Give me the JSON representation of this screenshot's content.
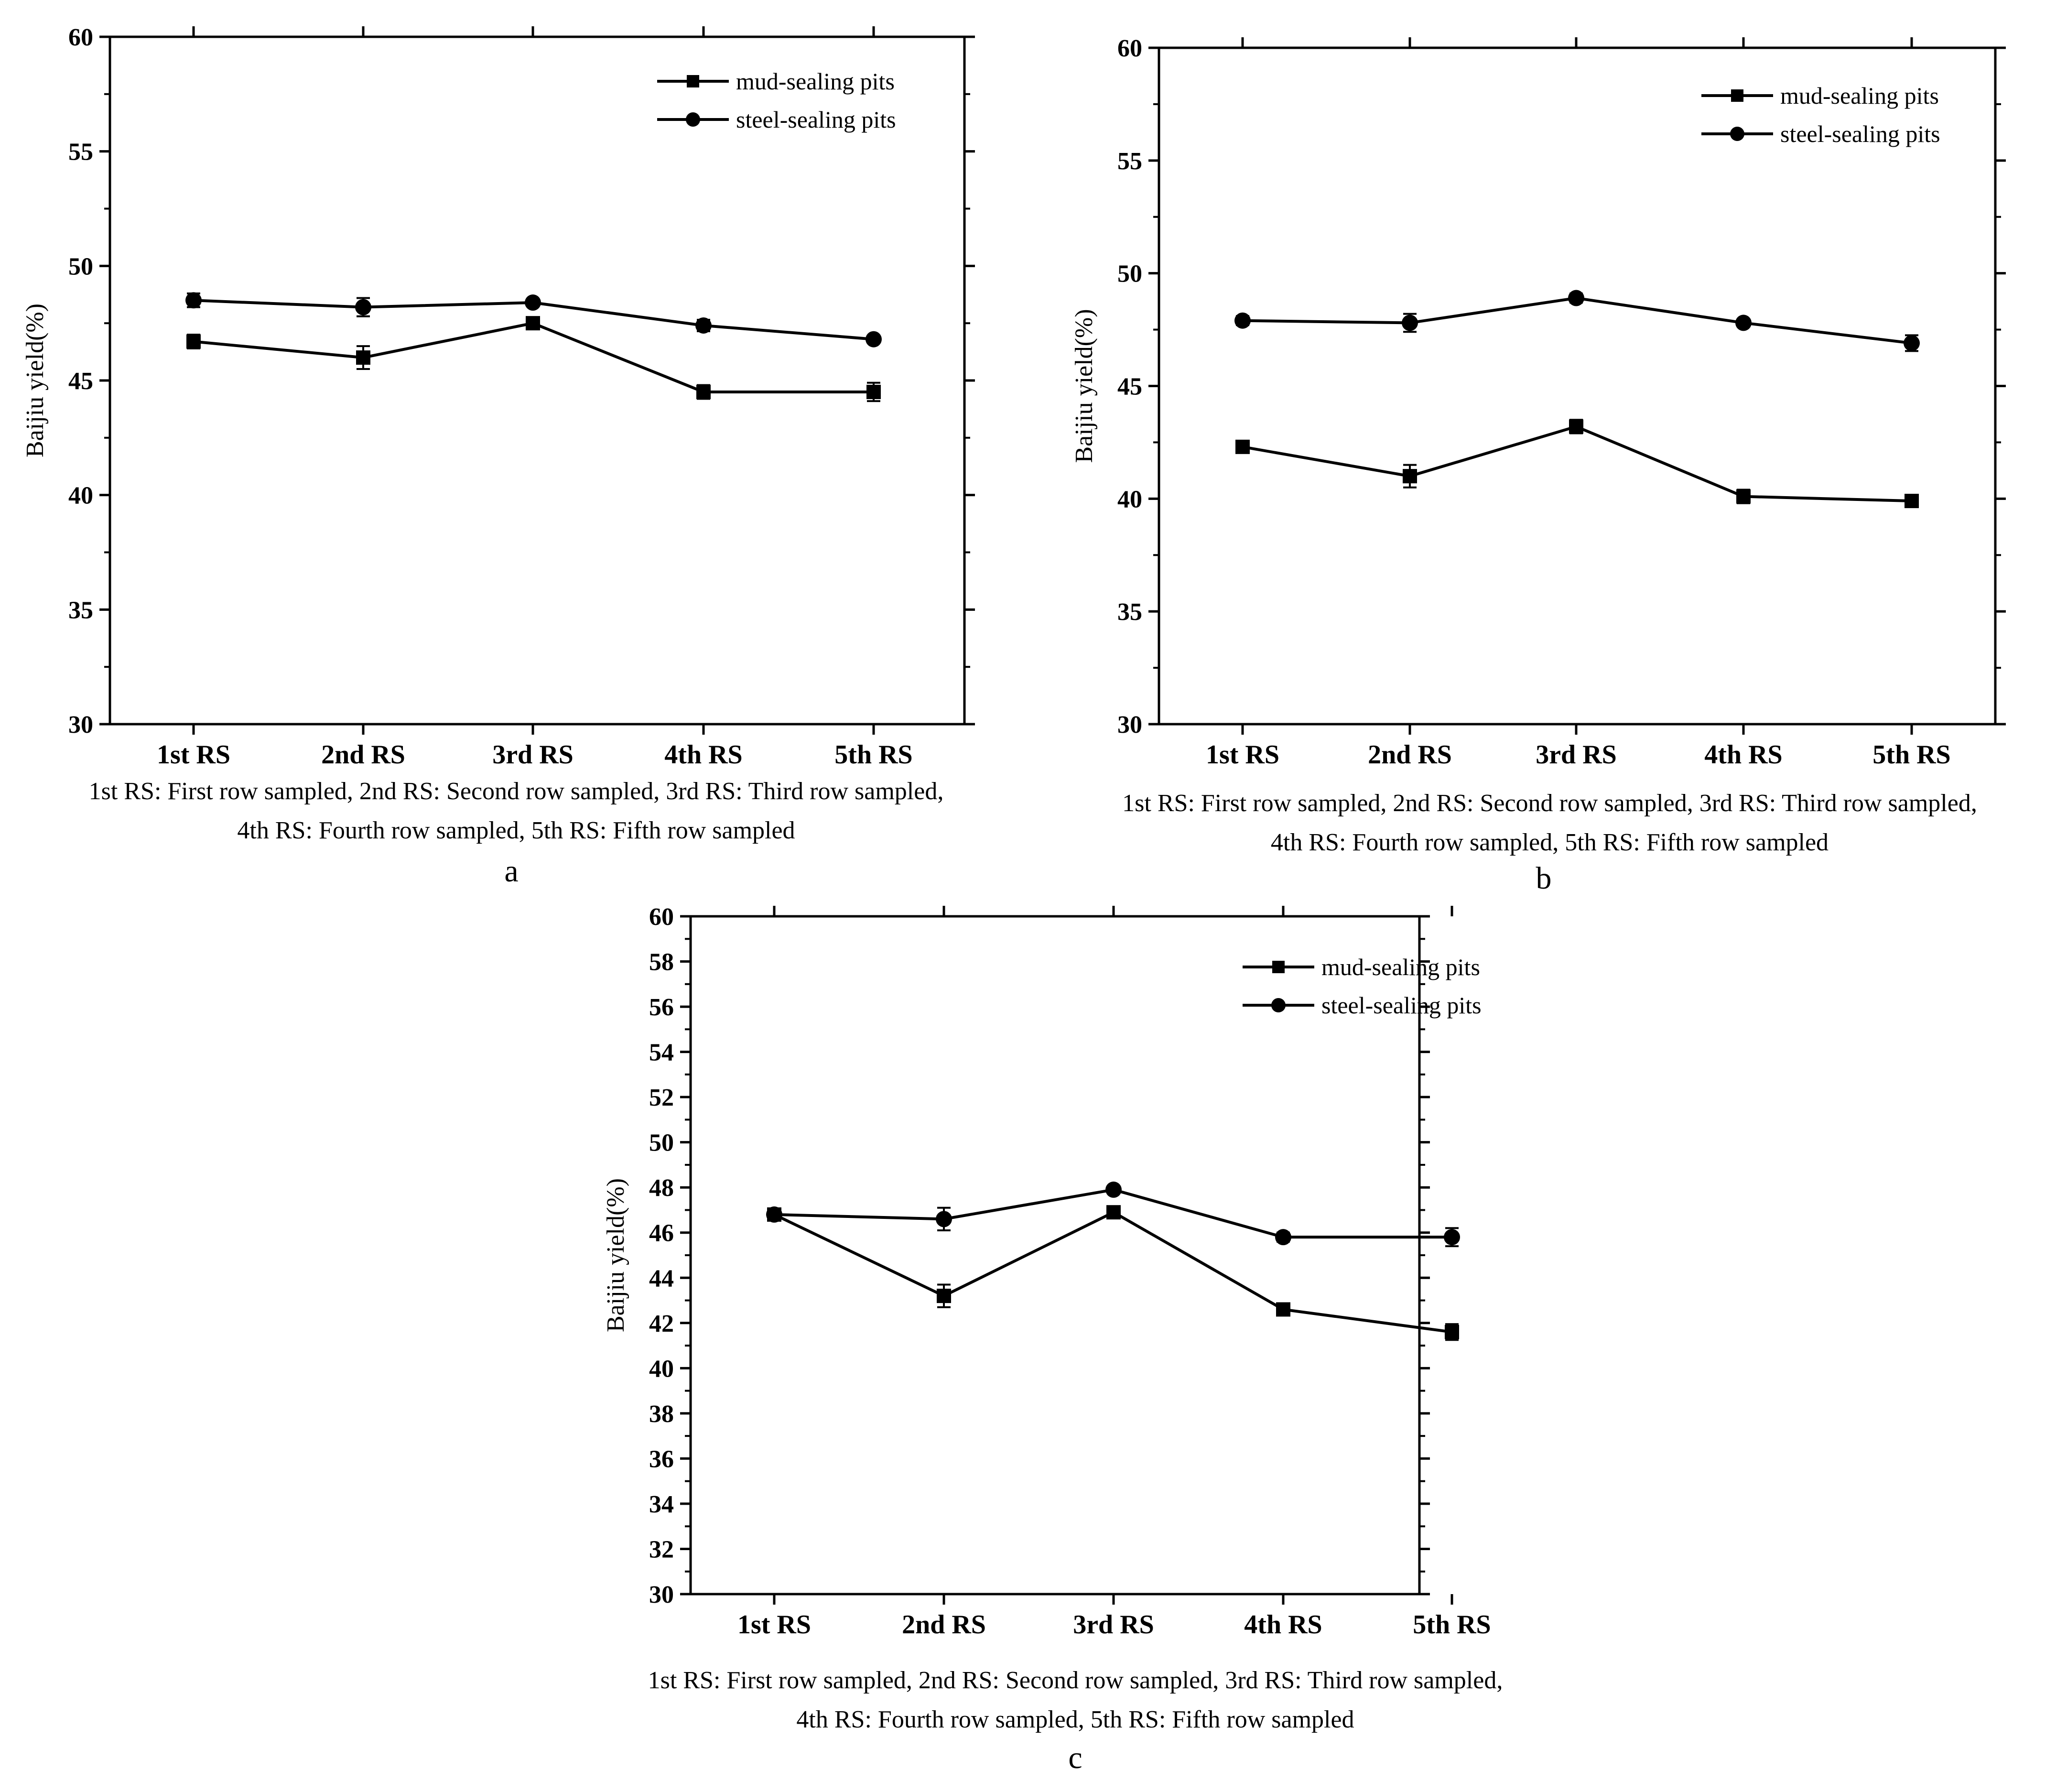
{
  "figure": {
    "caption_line1": "1st RS: First row sampled, 2nd RS: Second row sampled, 3rd RS: Third row sampled,",
    "caption_line2": "4th RS: Fourth row sampled, 5th RS: Fifth row sampled"
  },
  "colors": {
    "line": "#000000",
    "background": "#ffffff"
  },
  "chart_data": [
    {
      "panel": "a",
      "type": "line",
      "ylabel": "Baijiu yield(%)",
      "xlabel": "",
      "ylim": [
        30,
        60
      ],
      "yticks": [
        30,
        35,
        40,
        45,
        50,
        55,
        60
      ],
      "categories": [
        "1st RS",
        "2nd RS",
        "3rd RS",
        "4th RS",
        "5th RS"
      ],
      "legend_position": "top-right",
      "series": [
        {
          "name": "mud-sealing pits",
          "marker": "square",
          "values": [
            46.7,
            46.0,
            47.5,
            44.5,
            44.5
          ],
          "errors": [
            0.3,
            0.5,
            0.2,
            0.3,
            0.4
          ]
        },
        {
          "name": "steel-sealing pits",
          "marker": "circle",
          "values": [
            48.5,
            48.2,
            48.4,
            47.4,
            46.8
          ],
          "errors": [
            0.3,
            0.4,
            0.15,
            0.25,
            0.15
          ]
        }
      ]
    },
    {
      "panel": "b",
      "type": "line",
      "ylabel": "Baijiu yield(%)",
      "xlabel": "",
      "ylim": [
        30,
        60
      ],
      "yticks": [
        30,
        35,
        40,
        45,
        50,
        55,
        60
      ],
      "categories": [
        "1st RS",
        "2nd RS",
        "3rd RS",
        "4th RS",
        "5th RS"
      ],
      "legend_position": "top-right",
      "series": [
        {
          "name": "mud-sealing pits",
          "marker": "square",
          "values": [
            42.3,
            41.0,
            43.2,
            40.1,
            39.9
          ],
          "errors": [
            0.2,
            0.5,
            0.3,
            0.3,
            0.2
          ]
        },
        {
          "name": "steel-sealing pits",
          "marker": "circle",
          "values": [
            47.9,
            47.8,
            48.9,
            47.8,
            46.9
          ],
          "errors": [
            0.2,
            0.4,
            0.2,
            0.15,
            0.35
          ]
        }
      ]
    },
    {
      "panel": "c",
      "type": "line",
      "ylabel": "Baijiu yield(%)",
      "xlabel": "",
      "ylim": [
        30,
        60
      ],
      "yticks": [
        30,
        32,
        34,
        36,
        38,
        40,
        42,
        44,
        46,
        48,
        50,
        52,
        54,
        56,
        58,
        60
      ],
      "categories": [
        "1st RS",
        "2nd RS",
        "3rd RS",
        "4th RS",
        "5th RS"
      ],
      "legend_position": "top-right",
      "series": [
        {
          "name": "mud-sealing pits",
          "marker": "square",
          "values": [
            46.8,
            43.2,
            46.9,
            42.6,
            41.6
          ],
          "errors": [
            0.2,
            0.5,
            0.2,
            0.2,
            0.35
          ]
        },
        {
          "name": "steel-sealing pits",
          "marker": "circle",
          "values": [
            46.8,
            46.6,
            47.9,
            45.8,
            45.8
          ],
          "errors": [
            0.15,
            0.5,
            0.15,
            0.2,
            0.4
          ]
        }
      ]
    }
  ]
}
